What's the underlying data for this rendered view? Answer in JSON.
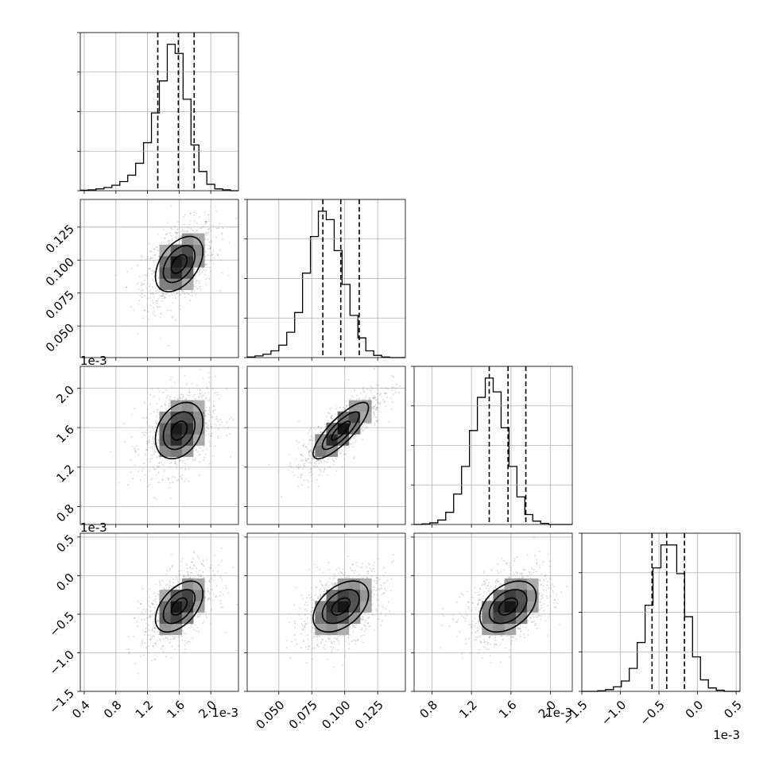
{
  "chart_data": {
    "type": "corner",
    "parameters": [
      {
        "id": "p0",
        "range": [
          0.35,
          2.35
        ],
        "offset_label": "1e-3",
        "ticks": [
          0.4,
          0.8,
          1.2,
          1.6,
          2.0
        ],
        "tick_labels": [
          "0.4",
          "0.8",
          "1.2",
          "1.6",
          "2.0"
        ],
        "quantiles": [
          1.33,
          1.59,
          1.79
        ],
        "mean": 1.6,
        "sd": 0.2
      },
      {
        "id": "p1",
        "range": [
          0.026,
          0.146
        ],
        "offset_label": "",
        "ticks": [
          0.05,
          0.075,
          0.1,
          0.125
        ],
        "tick_labels": [
          "0.050",
          "0.075",
          "0.100",
          "0.125"
        ],
        "quantiles": [
          0.0834,
          0.097,
          0.111
        ],
        "mean": 0.097,
        "sd": 0.014
      },
      {
        "id": "p2",
        "range": [
          0.62,
          2.22
        ],
        "offset_label": "1e-3",
        "ticks": [
          0.8,
          1.2,
          1.6,
          2.0
        ],
        "tick_labels": [
          "0.8",
          "1.2",
          "1.6",
          "2.0"
        ],
        "quantiles": [
          1.38,
          1.57,
          1.75
        ],
        "mean": 1.57,
        "sd": 0.19
      },
      {
        "id": "p3",
        "range": [
          -1.5,
          0.55
        ],
        "offset_label": "1e-3",
        "ticks": [
          -1.5,
          -1.0,
          -0.5,
          0.0,
          0.5
        ],
        "tick_labels": [
          "−1.5",
          "−1.0",
          "−0.5",
          "0.0",
          "0.5"
        ],
        "quantiles": [
          -0.59,
          -0.4,
          -0.17
        ],
        "mean": -0.4,
        "sd": 0.22
      }
    ],
    "correlations": {
      "1-0": 0.45,
      "2-0": 0.3,
      "2-1": 0.82,
      "3-0": 0.5,
      "3-1": 0.45,
      "3-2": 0.4
    },
    "histogram_bins": 20,
    "histogram_counts": {
      "p0": [
        1,
        2,
        4,
        7,
        12,
        20,
        34,
        60,
        105,
        170,
        240,
        320,
        300,
        200,
        100,
        42,
        14,
        4,
        2,
        0
      ],
      "p1": [
        1,
        3,
        6,
        12,
        22,
        45,
        80,
        150,
        215,
        260,
        245,
        190,
        130,
        75,
        35,
        12,
        4,
        1,
        0,
        0
      ],
      "p2": [
        0,
        1,
        3,
        8,
        22,
        55,
        105,
        170,
        230,
        265,
        240,
        175,
        105,
        50,
        18,
        6,
        2,
        0,
        0,
        0
      ],
      "p3": [
        0,
        0,
        1,
        3,
        8,
        18,
        40,
        85,
        150,
        215,
        255,
        255,
        205,
        130,
        60,
        20,
        6,
        2,
        0,
        0
      ]
    },
    "contour_levels": [
      0.5,
      1.0,
      1.5
    ],
    "grid": true,
    "ylabel": "",
    "xlabel": "",
    "title": ""
  }
}
